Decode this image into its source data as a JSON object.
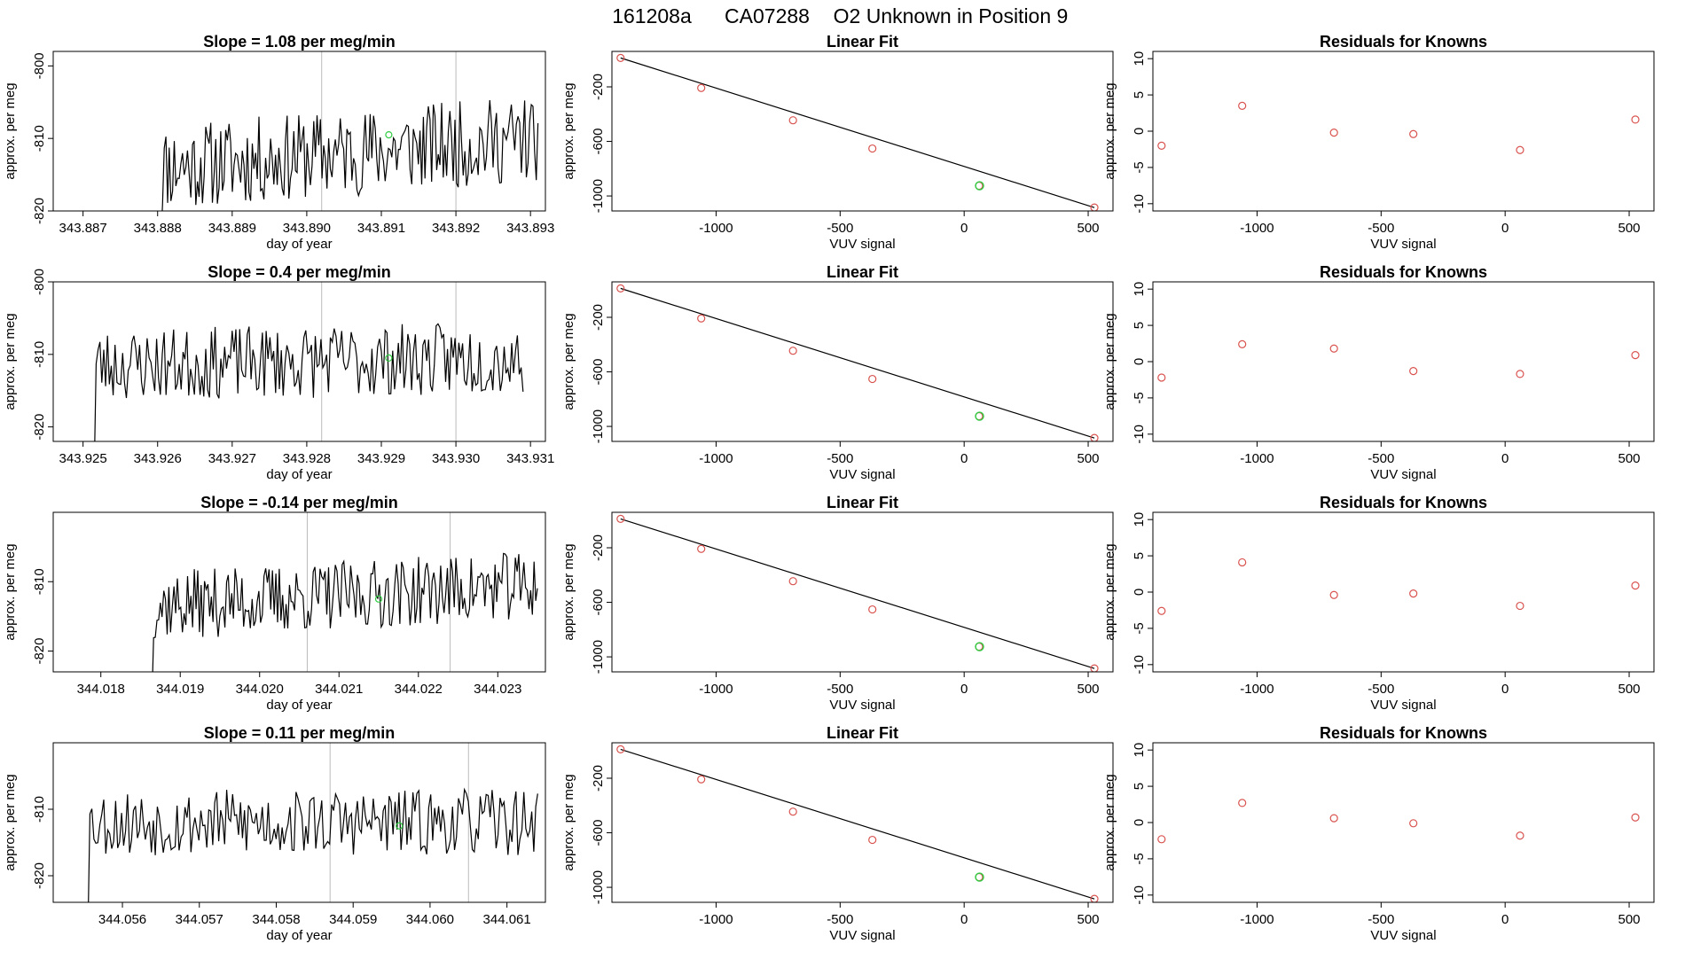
{
  "header": {
    "run_id": "161208a",
    "tank_id": "CA07288",
    "description": "O2 Unknown in Position  9"
  },
  "colors": {
    "line": "#000000",
    "known": "#d9534f",
    "unknown": "#2ecc40",
    "vline": "#bbbbbb"
  },
  "chart_data": [
    {
      "type": "line",
      "panel": "time_series",
      "row": 1,
      "title": "Slope =  1.08  per meg/min",
      "xlabel": "day of year",
      "ylabel": "approx. per meg",
      "xlim": [
        343.8866,
        343.8932
      ],
      "ylim": [
        -820,
        -798
      ],
      "xticks": [
        343.887,
        343.888,
        343.889,
        343.89,
        343.891,
        343.892,
        343.893
      ],
      "xtick_labels": [
        "343.887",
        "343.888",
        "343.889",
        "343.890",
        "343.891",
        "343.892",
        "343.893"
      ],
      "yticks": [
        -800,
        -810,
        -820
      ],
      "ytick_labels": [
        "-800",
        "-810",
        "-820"
      ],
      "x_start": 343.888,
      "x_end": 343.8931,
      "baseline": -812,
      "amplitude": 6,
      "trend": 4,
      "seed": 11,
      "vlines": [
        343.8902,
        343.892
      ],
      "marker": {
        "x": 343.8911,
        "y": -809.5
      }
    },
    {
      "type": "scatter",
      "panel": "linear_fit",
      "row": 1,
      "title": "Linear Fit",
      "xlabel": "VUV signal",
      "ylabel": "approx. per meg",
      "xlim": [
        -1420,
        600
      ],
      "ylim": [
        -1110,
        60
      ],
      "xticks": [
        -1000,
        -500,
        0,
        500
      ],
      "xtick_labels": [
        "-1000",
        "-500",
        "0",
        "500"
      ],
      "yticks": [
        -200,
        -600,
        -1000
      ],
      "ytick_labels": [
        "-200",
        "-600",
        "-1000"
      ],
      "knowns_x": [
        -1385,
        -1060,
        -690,
        -370,
        60,
        525
      ],
      "knowns_y": [
        12,
        -208,
        -445,
        -652,
        -925,
        -1085
      ],
      "unknown": {
        "x": 62,
        "y": -925
      },
      "fit_line": {
        "x": [
          -1385,
          525
        ],
        "y": [
          12,
          -1085
        ]
      }
    },
    {
      "type": "scatter",
      "panel": "residuals",
      "row": 1,
      "title": "Residuals for Knowns",
      "xlabel": "VUV signal",
      "ylabel": "approx. per meg",
      "xlim": [
        -1420,
        600
      ],
      "ylim": [
        -11,
        11
      ],
      "xticks": [
        -1000,
        -500,
        0,
        500
      ],
      "xtick_labels": [
        "-1000",
        "-500",
        "0",
        "500"
      ],
      "yticks": [
        10,
        5,
        0,
        -5,
        -10
      ],
      "ytick_labels": [
        "10",
        "5",
        "0",
        "-5",
        "-10"
      ],
      "x": [
        -1385,
        -1060,
        -690,
        -370,
        60,
        525
      ],
      "y": [
        -2.0,
        3.5,
        -0.2,
        -0.4,
        -2.6,
        1.6
      ]
    },
    {
      "type": "line",
      "panel": "time_series",
      "row": 2,
      "title": "Slope =  0.4  per meg/min",
      "xlabel": "day of year",
      "ylabel": "approx. per meg",
      "xlim": [
        343.9246,
        343.9312
      ],
      "ylim": [
        -822,
        -800
      ],
      "xticks": [
        343.925,
        343.926,
        343.927,
        343.928,
        343.929,
        343.93,
        343.931
      ],
      "xtick_labels": [
        "343.925",
        "343.926",
        "343.927",
        "343.928",
        "343.929",
        "343.930",
        "343.931"
      ],
      "yticks": [
        -800,
        -810,
        -820
      ],
      "ytick_labels": [
        "-800",
        "-810",
        "-820"
      ],
      "x_start": 343.9251,
      "x_end": 343.9309,
      "baseline": -811,
      "amplitude": 5,
      "trend": 1,
      "seed": 23,
      "vlines": [
        343.9282,
        343.93
      ],
      "marker": {
        "x": 343.9291,
        "y": -810.5
      }
    },
    {
      "type": "scatter",
      "panel": "linear_fit",
      "row": 2,
      "title": "Linear Fit",
      "xlabel": "VUV signal",
      "ylabel": "approx. per meg",
      "xlim": [
        -1420,
        600
      ],
      "ylim": [
        -1110,
        60
      ],
      "xticks": [
        -1000,
        -500,
        0,
        500
      ],
      "xtick_labels": [
        "-1000",
        "-500",
        "0",
        "500"
      ],
      "yticks": [
        -200,
        -600,
        -1000
      ],
      "ytick_labels": [
        "-200",
        "-600",
        "-1000"
      ],
      "knowns_x": [
        -1385,
        -1060,
        -690,
        -370,
        60,
        525
      ],
      "knowns_y": [
        12,
        -208,
        -445,
        -652,
        -925,
        -1085
      ],
      "unknown": {
        "x": 62,
        "y": -925
      },
      "fit_line": {
        "x": [
          -1385,
          525
        ],
        "y": [
          12,
          -1085
        ]
      }
    },
    {
      "type": "scatter",
      "panel": "residuals",
      "row": 2,
      "title": "Residuals for Knowns",
      "xlabel": "VUV signal",
      "ylabel": "approx. per meg",
      "xlim": [
        -1420,
        600
      ],
      "ylim": [
        -11,
        11
      ],
      "xticks": [
        -1000,
        -500,
        0,
        500
      ],
      "xtick_labels": [
        "-1000",
        "-500",
        "0",
        "500"
      ],
      "yticks": [
        10,
        5,
        0,
        -5,
        -10
      ],
      "ytick_labels": [
        "10",
        "5",
        "0",
        "-5",
        "-10"
      ],
      "x": [
        -1385,
        -1060,
        -690,
        -370,
        60,
        525
      ],
      "y": [
        -2.2,
        2.4,
        1.8,
        -1.3,
        -1.7,
        0.9
      ]
    },
    {
      "type": "line",
      "panel": "time_series",
      "row": 3,
      "title": "Slope =  -0.14  per meg/min",
      "xlabel": "day of year",
      "ylabel": "approx. per meg",
      "xlim": [
        344.0174,
        344.0236
      ],
      "ylim": [
        -823,
        -800
      ],
      "xticks": [
        344.018,
        344.019,
        344.02,
        344.021,
        344.022,
        344.023
      ],
      "xtick_labels": [
        "344.018",
        "344.019",
        "344.020",
        "344.021",
        "344.022",
        "344.023"
      ],
      "yticks": [
        -810,
        -820
      ],
      "ytick_labels": [
        "-810",
        "-820"
      ],
      "x_start": 344.0186,
      "x_end": 344.0235,
      "baseline": -812,
      "amplitude": 5,
      "trend": 3,
      "seed": 37,
      "vlines": [
        344.0206,
        344.0224
      ],
      "marker": {
        "x": 344.0215,
        "y": -812.5
      }
    },
    {
      "type": "scatter",
      "panel": "linear_fit",
      "row": 3,
      "title": "Linear Fit",
      "xlabel": "VUV signal",
      "ylabel": "approx. per meg",
      "xlim": [
        -1420,
        600
      ],
      "ylim": [
        -1110,
        60
      ],
      "xticks": [
        -1000,
        -500,
        0,
        500
      ],
      "xtick_labels": [
        "-1000",
        "-500",
        "0",
        "500"
      ],
      "yticks": [
        -200,
        -600,
        -1000
      ],
      "ytick_labels": [
        "-200",
        "-600",
        "-1000"
      ],
      "knowns_x": [
        -1385,
        -1060,
        -690,
        -370,
        60,
        525
      ],
      "knowns_y": [
        12,
        -208,
        -445,
        -652,
        -925,
        -1085
      ],
      "unknown": {
        "x": 62,
        "y": -925
      },
      "fit_line": {
        "x": [
          -1385,
          525
        ],
        "y": [
          12,
          -1085
        ]
      }
    },
    {
      "type": "scatter",
      "panel": "residuals",
      "row": 3,
      "title": "Residuals for Knowns",
      "xlabel": "VUV signal",
      "ylabel": "approx. per meg",
      "xlim": [
        -1420,
        600
      ],
      "ylim": [
        -11,
        11
      ],
      "xticks": [
        -1000,
        -500,
        0,
        500
      ],
      "xtick_labels": [
        "-1000",
        "-500",
        "0",
        "500"
      ],
      "yticks": [
        10,
        5,
        0,
        -5,
        -10
      ],
      "ytick_labels": [
        "10",
        "5",
        "0",
        "-5",
        "-10"
      ],
      "x": [
        -1385,
        -1060,
        -690,
        -370,
        60,
        525
      ],
      "y": [
        -2.6,
        4.1,
        -0.4,
        -0.2,
        -1.9,
        0.9
      ]
    },
    {
      "type": "line",
      "panel": "time_series",
      "row": 4,
      "title": "Slope =  0.11  per meg/min",
      "xlabel": "day of year",
      "ylabel": "approx. per meg",
      "xlim": [
        344.0551,
        344.0615
      ],
      "ylim": [
        -824,
        -800
      ],
      "xticks": [
        344.056,
        344.057,
        344.058,
        344.059,
        344.06,
        344.061
      ],
      "xtick_labels": [
        "344.056",
        "344.057",
        "344.058",
        "344.059",
        "344.060",
        "344.061"
      ],
      "yticks": [
        -810,
        -820
      ],
      "ytick_labels": [
        "-810",
        "-820"
      ],
      "x_start": 344.0555,
      "x_end": 344.0614,
      "baseline": -812,
      "amplitude": 5,
      "trend": 0,
      "seed": 53,
      "vlines": [
        344.0587,
        344.0605
      ],
      "marker": {
        "x": 344.0596,
        "y": -812.5
      }
    },
    {
      "type": "scatter",
      "panel": "linear_fit",
      "row": 4,
      "title": "Linear Fit",
      "xlabel": "VUV signal",
      "ylabel": "approx. per meg",
      "xlim": [
        -1420,
        600
      ],
      "ylim": [
        -1110,
        60
      ],
      "xticks": [
        -1000,
        -500,
        0,
        500
      ],
      "xtick_labels": [
        "-1000",
        "-500",
        "0",
        "500"
      ],
      "yticks": [
        -200,
        -600,
        -1000
      ],
      "ytick_labels": [
        "-200",
        "-600",
        "-1000"
      ],
      "knowns_x": [
        -1385,
        -1060,
        -690,
        -370,
        60,
        525
      ],
      "knowns_y": [
        12,
        -208,
        -445,
        -652,
        -925,
        -1085
      ],
      "unknown": {
        "x": 62,
        "y": -925
      },
      "fit_line": {
        "x": [
          -1385,
          525
        ],
        "y": [
          12,
          -1085
        ]
      }
    },
    {
      "type": "scatter",
      "panel": "residuals",
      "row": 4,
      "title": "Residuals for Knowns",
      "xlabel": "VUV signal",
      "ylabel": "approx. per meg",
      "xlim": [
        -1420,
        600
      ],
      "ylim": [
        -11,
        11
      ],
      "xticks": [
        -1000,
        -500,
        0,
        500
      ],
      "xtick_labels": [
        "-1000",
        "-500",
        "0",
        "500"
      ],
      "yticks": [
        10,
        5,
        0,
        -5,
        -10
      ],
      "ytick_labels": [
        "10",
        "5",
        "0",
        "-5",
        "-10"
      ],
      "x": [
        -1385,
        -1060,
        -690,
        -370,
        60,
        525
      ],
      "y": [
        -2.3,
        2.7,
        0.6,
        -0.1,
        -1.8,
        0.7
      ]
    }
  ]
}
